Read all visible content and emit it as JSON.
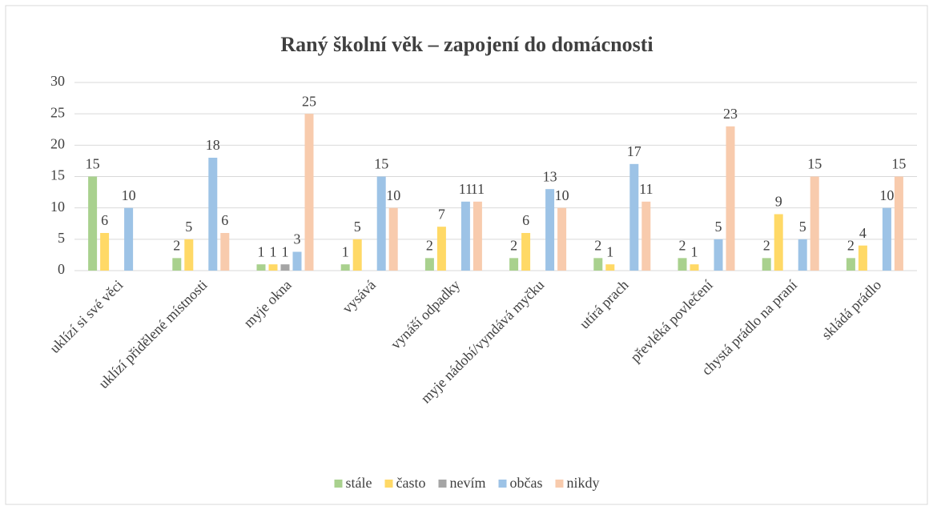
{
  "chart_data": {
    "type": "bar",
    "title": "Raný školní věk – zapojení do domácnosti",
    "categories": [
      "uklízí si své věci",
      "uklízí přidělené místnosti",
      "myje okna",
      "vysává",
      "vynáší odpadky",
      "myje nádobí/vyndává myčku",
      "utírá prach",
      "převléká povlečení",
      "chystá prádlo na praní",
      "skládá prádlo"
    ],
    "series": [
      {
        "name": "stále",
        "color": "#a9d18e",
        "values": [
          15,
          2,
          1,
          1,
          2,
          2,
          2,
          2,
          2,
          2
        ]
      },
      {
        "name": "často",
        "color": "#ffd966",
        "values": [
          6,
          5,
          1,
          5,
          7,
          6,
          1,
          1,
          9,
          4
        ]
      },
      {
        "name": "nevím",
        "color": "#a5a5a5",
        "values": [
          null,
          null,
          1,
          null,
          null,
          null,
          null,
          null,
          null,
          null
        ]
      },
      {
        "name": "občas",
        "color": "#9dc3e6",
        "values": [
          10,
          18,
          3,
          15,
          11,
          13,
          17,
          5,
          5,
          10
        ]
      },
      {
        "name": "nikdy",
        "color": "#f8cbad",
        "values": [
          null,
          6,
          25,
          10,
          11,
          10,
          11,
          23,
          15,
          15
        ]
      }
    ],
    "ylim": [
      0,
      30
    ],
    "yticks": [
      0,
      5,
      10,
      15,
      20,
      25,
      30
    ],
    "grid": true,
    "legend": "bottom"
  }
}
